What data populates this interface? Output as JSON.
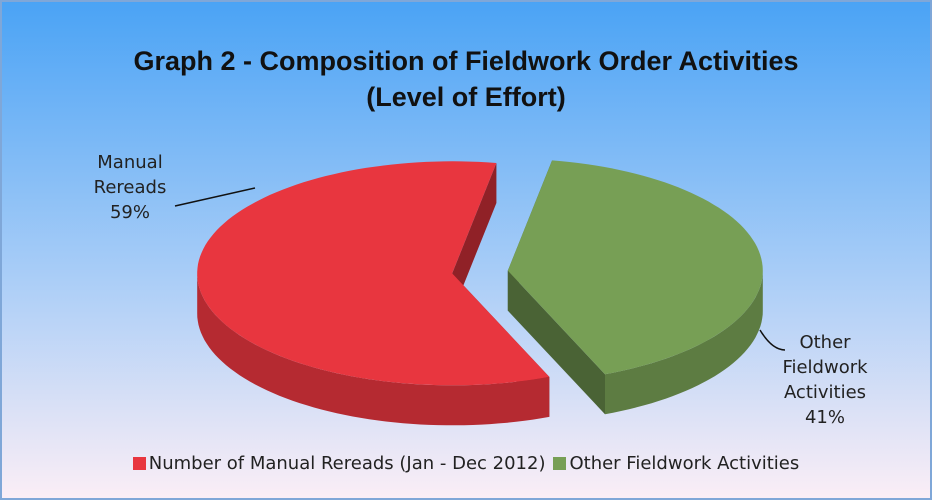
{
  "chart_data": {
    "type": "pie",
    "title": "Graph 2 - Composition of Fieldwork Order Activities",
    "subtitle": "(Level of Effort)",
    "categories": [
      "Number of Manual Rereads (Jan - Dec 2012)",
      "Other Fieldwork Activities"
    ],
    "data_labels": [
      "Manual Rereads",
      "Other Fieldwork Activities"
    ],
    "values": [
      59,
      41
    ],
    "value_labels": [
      "59%",
      "41%"
    ],
    "colors": [
      "#e8363f",
      "#779f55"
    ],
    "legend": "bottom"
  }
}
